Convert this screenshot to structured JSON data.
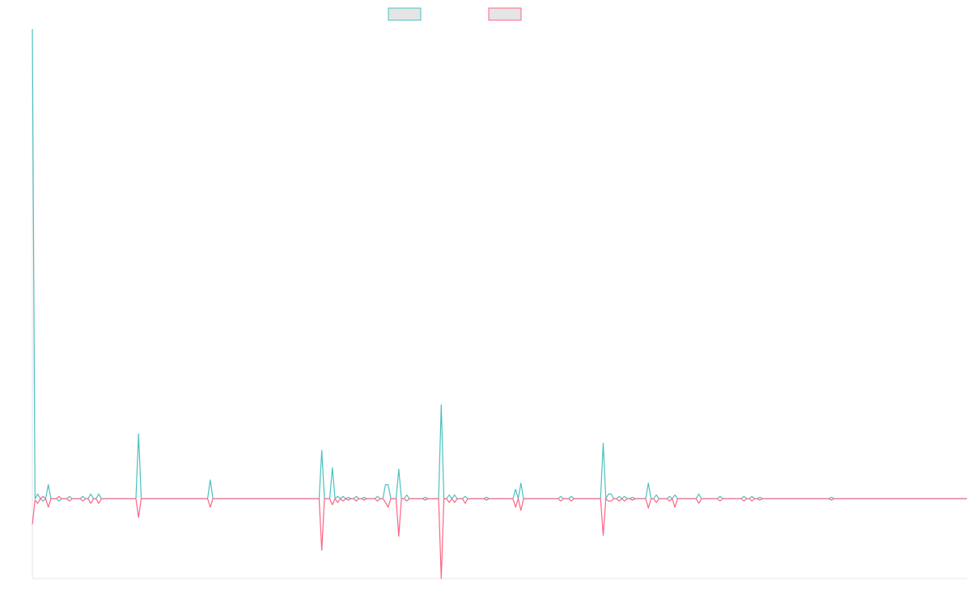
{
  "chart_data": {
    "type": "line",
    "title": "",
    "xlabel": "",
    "ylabel": "",
    "grid": false,
    "legend_position": "top-center",
    "ylim": [
      -0.17,
      1.0
    ],
    "series": [
      {
        "color": "#4bc0c0",
        "values": [
          1.0,
          0.0,
          0.01,
          0.0,
          -0.005,
          0.0,
          0.03,
          0.0,
          0.0,
          0.0,
          -0.005,
          0.0,
          0.0,
          0.0,
          0.005,
          0.0,
          0.0,
          0.0,
          0.0,
          0.005,
          0.0,
          0.0,
          0.01,
          0.0,
          0.0,
          0.01,
          0.0,
          0.0,
          0.0,
          0.0,
          0.0,
          0.0,
          0.0,
          0.0,
          0.0,
          0.0,
          0.0,
          0.0,
          0.0,
          0.0,
          0.138,
          0.0,
          0.0,
          0.0,
          0.0,
          0.0,
          0.0,
          0.0,
          0.0,
          0.0,
          0.0,
          0.0,
          0.0,
          0.0,
          0.0,
          0.0,
          0.0,
          0.0,
          0.0,
          0.0,
          0.0,
          0.0,
          0.0,
          0.0,
          0.0,
          0.0,
          0.0,
          0.04,
          0.0,
          0.0,
          0.0,
          0.0,
          0.0,
          0.0,
          0.0,
          0.0,
          0.0,
          0.0,
          0.0,
          0.0,
          0.0,
          0.0,
          0.0,
          0.0,
          0.0,
          0.0,
          0.0,
          0.0,
          0.0,
          0.0,
          0.0,
          0.0,
          0.0,
          0.0,
          0.0,
          0.0,
          0.0,
          0.0,
          0.0,
          0.0,
          0.0,
          0.0,
          0.0,
          0.0,
          0.0,
          0.0,
          0.0,
          0.0,
          0.0,
          0.103,
          0.0,
          0.0,
          0.0,
          0.066,
          0.0,
          0.005,
          0.0,
          0.005,
          0.0,
          0.003,
          0.0,
          0.0,
          0.005,
          0.0,
          0.0,
          0.003,
          0.0,
          0.0,
          0.0,
          0.0,
          0.005,
          0.0,
          0.0,
          0.03,
          0.03,
          0.0,
          0.0,
          0.0,
          0.063,
          0.0,
          0.0,
          0.008,
          0.0,
          0.0,
          0.0,
          0.0,
          0.0,
          0.0,
          0.003,
          0.0,
          0.0,
          0.0,
          0.0,
          0.0,
          0.2,
          0.0,
          0.0,
          0.008,
          0.0,
          0.008,
          0.0,
          0.0,
          0.0,
          0.005,
          0.0,
          0.0,
          0.0,
          0.0,
          0.0,
          0.0,
          0.0,
          0.003,
          0.0,
          0.0,
          0.0,
          0.0,
          0.0,
          0.0,
          0.0,
          0.0,
          0.0,
          0.0,
          0.02,
          0.0,
          0.033,
          0.0,
          0.0,
          0.0,
          0.0,
          0.0,
          0.0,
          0.0,
          0.0,
          0.0,
          0.0,
          0.0,
          0.0,
          0.0,
          0.0,
          0.005,
          0.0,
          0.0,
          0.0,
          0.005,
          0.0,
          0.0,
          0.0,
          0.0,
          0.0,
          0.0,
          0.0,
          0.0,
          0.0,
          0.0,
          0.0,
          0.118,
          0.0,
          0.01,
          0.01,
          0.0,
          0.0,
          0.005,
          0.0,
          0.005,
          0.0,
          0.0,
          0.003,
          0.0,
          0.0,
          0.0,
          0.0,
          0.0,
          0.033,
          0.0,
          0.0,
          0.008,
          0.0,
          0.0,
          0.0,
          0.0,
          0.005,
          0.0,
          0.008,
          0.0,
          0.0,
          0.0,
          0.0,
          0.0,
          0.0,
          0.0,
          0.0,
          0.01,
          0.0,
          0.0,
          0.0,
          0.0,
          0.0,
          0.0,
          0.0,
          0.005,
          0.0,
          0.0,
          0.0,
          0.0,
          0.0,
          0.0,
          0.0,
          0.0,
          0.005,
          0.0,
          0.0,
          0.005,
          0.0,
          0.0,
          0.003,
          0.0,
          0.0,
          0.0,
          0.0,
          0.0,
          0.0,
          0.0,
          0.0,
          0.0,
          0.0,
          0.0,
          0.0,
          0.0,
          0.0,
          0.0,
          0.0,
          0.0,
          0.0,
          0.0,
          0.0,
          0.0,
          0.0,
          0.0,
          0.0,
          0.0,
          0.0,
          0.003,
          0.0,
          0.0,
          0.0,
          0.0,
          0.0,
          0.0,
          0.0,
          0.0,
          0.0,
          0.0,
          0.0,
          0.0,
          0.0,
          0.0,
          0.0,
          0.0,
          0.0,
          0.0,
          0.0,
          0.0,
          0.0,
          0.0,
          0.0,
          0.0,
          0.0,
          0.0,
          0.0,
          0.0,
          0.0,
          0.0,
          0.0,
          0.0,
          0.0,
          0.0,
          0.0,
          0.0,
          0.0,
          0.0,
          0.0,
          0.0,
          0.0,
          0.0,
          0.0,
          0.0,
          0.0,
          0.0,
          0.0,
          0.0,
          0.0,
          0.0,
          0.0
        ]
      },
      {
        "color": "#ff6384",
        "values": [
          -0.055,
          -0.003,
          -0.01,
          0.0,
          0.005,
          0.0,
          -0.018,
          0.0,
          0.0,
          0.0,
          0.005,
          0.0,
          0.0,
          0.0,
          -0.005,
          0.0,
          0.0,
          0.0,
          0.0,
          -0.005,
          0.0,
          0.0,
          -0.01,
          0.0,
          0.0,
          -0.01,
          0.0,
          0.0,
          0.0,
          0.0,
          0.0,
          0.0,
          0.0,
          0.0,
          0.0,
          0.0,
          0.0,
          0.0,
          0.0,
          0.0,
          -0.04,
          0.0,
          0.0,
          0.0,
          0.0,
          0.0,
          0.0,
          0.0,
          0.0,
          0.0,
          0.0,
          0.0,
          0.0,
          0.0,
          0.0,
          0.0,
          0.0,
          0.0,
          0.0,
          0.0,
          0.0,
          0.0,
          0.0,
          0.0,
          0.0,
          0.0,
          0.0,
          -0.018,
          0.0,
          0.0,
          0.0,
          0.0,
          0.0,
          0.0,
          0.0,
          0.0,
          0.0,
          0.0,
          0.0,
          0.0,
          0.0,
          0.0,
          0.0,
          0.0,
          0.0,
          0.0,
          0.0,
          0.0,
          0.0,
          0.0,
          0.0,
          0.0,
          0.0,
          0.0,
          0.0,
          0.0,
          0.0,
          0.0,
          0.0,
          0.0,
          0.0,
          0.0,
          0.0,
          0.0,
          0.0,
          0.0,
          0.0,
          0.0,
          0.0,
          -0.11,
          0.0,
          0.0,
          0.0,
          -0.013,
          0.0,
          -0.008,
          0.0,
          -0.005,
          0.0,
          -0.003,
          0.0,
          0.0,
          -0.005,
          0.0,
          0.0,
          -0.003,
          0.0,
          0.0,
          0.0,
          0.0,
          -0.005,
          0.0,
          0.0,
          -0.008,
          -0.018,
          0.0,
          0.0,
          0.0,
          -0.08,
          0.0,
          0.0,
          -0.005,
          0.0,
          0.0,
          0.0,
          0.0,
          0.0,
          0.0,
          -0.003,
          0.0,
          0.0,
          0.0,
          0.0,
          0.0,
          -0.17,
          0.0,
          0.0,
          -0.008,
          0.0,
          -0.008,
          0.0,
          0.0,
          0.0,
          -0.01,
          0.0,
          0.0,
          0.0,
          0.0,
          0.0,
          0.0,
          0.0,
          -0.003,
          0.0,
          0.0,
          0.0,
          0.0,
          0.0,
          0.0,
          0.0,
          0.0,
          0.0,
          0.0,
          -0.018,
          0.0,
          -0.025,
          0.0,
          0.0,
          0.0,
          0.0,
          0.0,
          0.0,
          0.0,
          0.0,
          0.0,
          0.0,
          0.0,
          0.0,
          0.0,
          0.0,
          -0.005,
          0.0,
          0.0,
          0.0,
          -0.005,
          0.0,
          0.0,
          0.0,
          0.0,
          0.0,
          0.0,
          0.0,
          0.0,
          0.0,
          0.0,
          0.0,
          -0.078,
          0.0,
          -0.005,
          -0.005,
          0.0,
          0.0,
          -0.005,
          0.0,
          -0.005,
          0.0,
          0.0,
          -0.003,
          0.0,
          0.0,
          0.0,
          0.0,
          0.0,
          -0.02,
          0.0,
          0.0,
          -0.008,
          0.0,
          0.0,
          0.0,
          0.0,
          -0.005,
          0.0,
          -0.018,
          0.0,
          0.0,
          0.0,
          0.0,
          0.0,
          0.0,
          0.0,
          0.0,
          -0.01,
          0.0,
          0.0,
          0.0,
          0.0,
          0.0,
          0.0,
          0.0,
          -0.005,
          0.0,
          0.0,
          0.0,
          0.0,
          0.0,
          0.0,
          0.0,
          0.0,
          -0.005,
          0.0,
          0.0,
          -0.005,
          0.0,
          0.0,
          -0.003,
          0.0,
          0.0,
          0.0,
          0.0,
          0.0,
          0.0,
          0.0,
          0.0,
          0.0,
          0.0,
          0.0,
          0.0,
          0.0,
          0.0,
          0.0,
          0.0,
          0.0,
          0.0,
          0.0,
          0.0,
          0.0,
          0.0,
          0.0,
          0.0,
          0.0,
          0.0,
          -0.003,
          0.0,
          0.0,
          0.0,
          0.0,
          0.0,
          0.0,
          0.0,
          0.0,
          0.0,
          0.0,
          0.0,
          0.0,
          0.0,
          0.0,
          0.0,
          0.0,
          0.0,
          0.0,
          0.0,
          0.0,
          0.0,
          0.0,
          0.0,
          0.0,
          0.0,
          0.0,
          0.0,
          0.0,
          0.0,
          0.0,
          0.0,
          0.0,
          0.0,
          0.0,
          0.0,
          0.0,
          0.0,
          0.0,
          0.0,
          0.0,
          0.0,
          0.0,
          0.0,
          0.0,
          0.0,
          0.0,
          0.0,
          0.0,
          0.0,
          0.0,
          0.0
        ]
      }
    ]
  }
}
